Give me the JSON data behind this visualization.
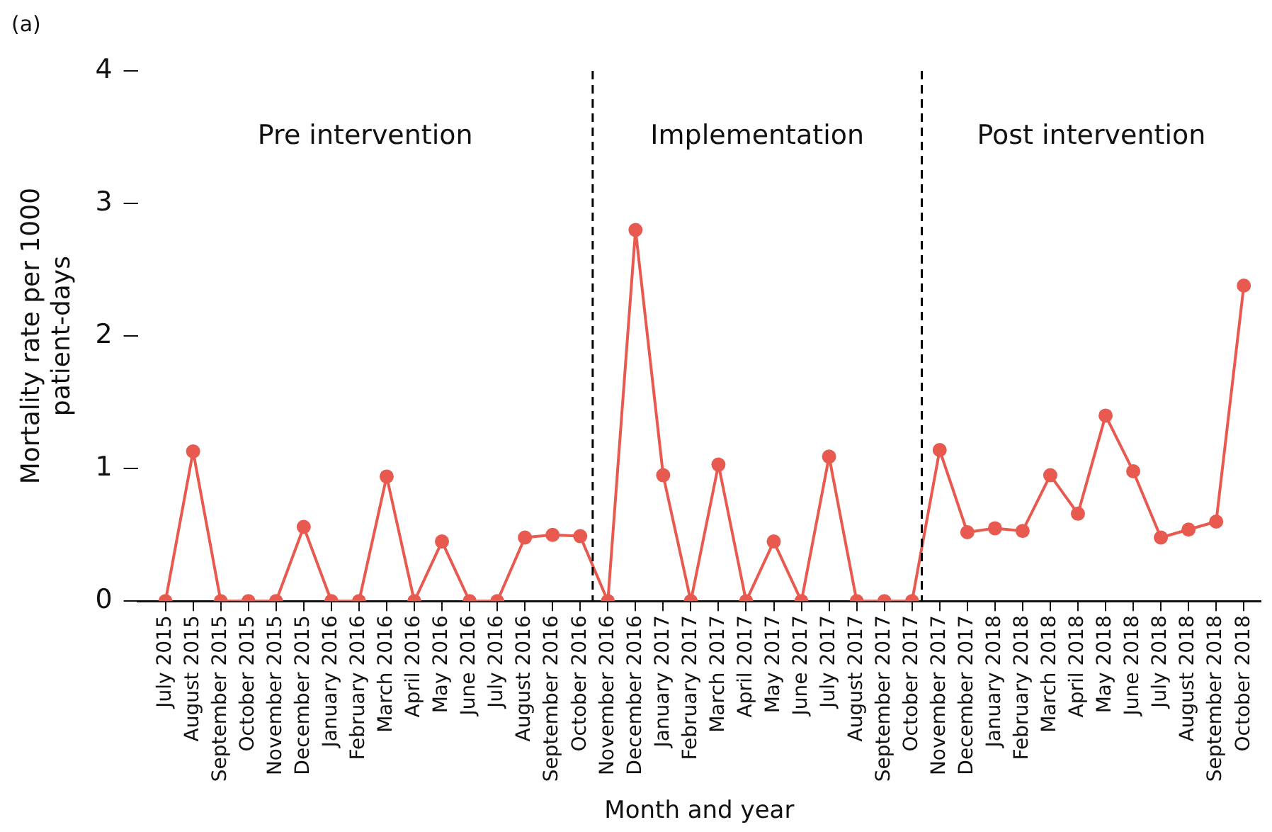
{
  "chart_data": {
    "type": "line",
    "xlabel": "Month and year",
    "ylabel": "Mortality rate per 1000\npatient-days",
    "x": [
      "2015-07",
      "2015-08",
      "2015-09",
      "2015-10",
      "2015-11",
      "2015-12",
      "2016-01",
      "2016-02",
      "2016-03",
      "2016-04",
      "2016-05",
      "2016-06",
      "2016-07",
      "2016-08",
      "2016-09",
      "2016-10",
      "2016-11",
      "2016-12",
      "2017-01",
      "2017-02",
      "2017-03",
      "2017-04",
      "2017-05",
      "2017-06",
      "2017-07",
      "2017-08",
      "2017-09",
      "2017-10",
      "2017-11",
      "2017-12",
      "2018-01",
      "2018-02",
      "2018-03",
      "2018-04",
      "2018-05",
      "2018-06",
      "2018-07",
      "2018-08",
      "2018-09",
      "2018-10"
    ],
    "series": [
      {
        "color": "#e85a4f",
        "values": [
          0,
          1.13,
          0,
          0,
          0,
          0.56,
          0,
          0,
          0.94,
          0,
          0.45,
          0,
          0,
          0.48,
          0.5,
          0.49,
          0,
          2.8,
          0.95,
          0,
          1.03,
          0,
          0.45,
          0,
          1.09,
          0,
          0,
          0,
          1.14,
          0.52,
          0.55,
          0.53,
          0.95,
          0.66,
          1.4,
          0.98,
          0.48,
          0.54,
          0.6,
          2.38
        ]
      }
    ],
    "xlim": [
      "2015-06-01",
      "2018-10-20"
    ],
    "xticks": [
      {
        "value": "2015-07",
        "label": "July 2015"
      },
      {
        "value": "2015-08",
        "label": "August 2015"
      },
      {
        "value": "2015-09",
        "label": "September 2015"
      },
      {
        "value": "2015-10",
        "label": "October 2015"
      },
      {
        "value": "2015-11",
        "label": "November 2015"
      },
      {
        "value": "2015-12",
        "label": "December 2015"
      },
      {
        "value": "2016-01",
        "label": "January 2016"
      },
      {
        "value": "2016-02",
        "label": "February 2016"
      },
      {
        "value": "2016-03",
        "label": "March 2016"
      },
      {
        "value": "2016-04",
        "label": "April 2016"
      },
      {
        "value": "2016-05",
        "label": "May 2016"
      },
      {
        "value": "2016-06",
        "label": "June 2016"
      },
      {
        "value": "2016-07",
        "label": "July 2016"
      },
      {
        "value": "2016-08",
        "label": "August 2016"
      },
      {
        "value": "2016-09",
        "label": "September 2016"
      },
      {
        "value": "2016-10",
        "label": "October 2016"
      },
      {
        "value": "2016-11",
        "label": "November 2016"
      },
      {
        "value": "2016-12",
        "label": "December 2016"
      },
      {
        "value": "2017-01",
        "label": "January 2017"
      },
      {
        "value": "2017-02",
        "label": "February 2017"
      },
      {
        "value": "2017-03",
        "label": "March 2017"
      },
      {
        "value": "2017-04",
        "label": "April 2017"
      },
      {
        "value": "2017-05",
        "label": "May 2017"
      },
      {
        "value": "2017-06",
        "label": "June 2017"
      },
      {
        "value": "2017-07",
        "label": "July 2017"
      },
      {
        "value": "2017-08",
        "label": "August 2017"
      },
      {
        "value": "2017-09",
        "label": "September 2017"
      },
      {
        "value": "2017-10",
        "label": "October 2017"
      },
      {
        "value": "2017-11",
        "label": "November 2017"
      },
      {
        "value": "2017-12",
        "label": "December 2017"
      },
      {
        "value": "2018-01",
        "label": "January 2018"
      },
      {
        "value": "2018-02",
        "label": "February 2018"
      },
      {
        "value": "2018-03",
        "label": "March 2018"
      },
      {
        "value": "2018-04",
        "label": "April 2018"
      },
      {
        "value": "2018-05",
        "label": "May 2018"
      },
      {
        "value": "2018-06",
        "label": "June 2018"
      },
      {
        "value": "2018-07",
        "label": "July 2018"
      },
      {
        "value": "2018-08",
        "label": "August 2018"
      },
      {
        "value": "2018-09",
        "label": "September 2018"
      },
      {
        "value": "2018-10",
        "label": "October 2018"
      }
    ],
    "ylim": [
      0,
      4
    ],
    "yticks": [
      0,
      1,
      2,
      3,
      4
    ],
    "ref_lines": [
      {
        "axis": "x",
        "value": "2016-10-15",
        "color": "#000000",
        "line_style": "dashed"
      },
      {
        "axis": "x",
        "value": "2017-10-12",
        "color": "#000000",
        "line_style": "dashed"
      }
    ],
    "annotations": [
      "(a)",
      "Pre intervention",
      "Implementation",
      "Post intervention"
    ],
    "grid": false,
    "legend": false,
    "marker": "circle",
    "line_style": "solid"
  }
}
